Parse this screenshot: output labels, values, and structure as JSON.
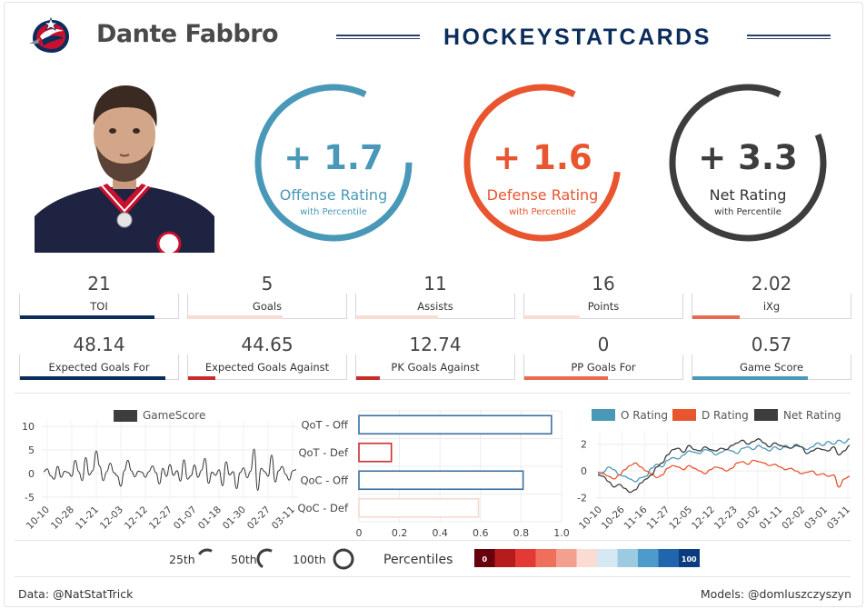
{
  "header": {
    "player_name": "Dante Fabbro",
    "brand": "HOCKEYSTATCARDS",
    "team_logo": "blue-jackets-logo-icon",
    "headshot": "player-headshot-icon"
  },
  "colors": {
    "offense": "#4a98b8",
    "defense": "#e8552f",
    "net": "#3d3d3d",
    "navy": "#0b2d5c",
    "red": "#c62c2c"
  },
  "ratings": [
    {
      "value": "+ 1.7",
      "label": "Offense Rating",
      "sub": "with Percentile",
      "percentile": 0.82,
      "color": "#4a98b8"
    },
    {
      "value": "+ 1.6",
      "label": "Defense Rating",
      "sub": "with Percentile",
      "percentile": 0.8,
      "color": "#e8552f"
    },
    {
      "value": "+ 3.3",
      "label": "Net Rating",
      "sub": "with Percentile",
      "percentile": 0.88,
      "color": "#3d3d3d"
    }
  ],
  "stats_row1": [
    {
      "value": "21",
      "label": "TOI",
      "percentile": 0.85,
      "color": "#0b2d5c"
    },
    {
      "value": "5",
      "label": "Goals",
      "percentile": 0.6,
      "color": "#fbdcd5"
    },
    {
      "value": "11",
      "label": "Assists",
      "percentile": 0.52,
      "color": "#fbdcd5"
    },
    {
      "value": "16",
      "label": "Points",
      "percentile": 0.35,
      "color": "#fbdcd5"
    },
    {
      "value": "2.02",
      "label": "iXg",
      "percentile": 0.3,
      "color": "#ea6a50"
    }
  ],
  "stats_row2": [
    {
      "value": "48.14",
      "label": "Expected Goals For",
      "percentile": 0.92,
      "color": "#0b2d5c"
    },
    {
      "value": "44.65",
      "label": "Expected Goals Against",
      "percentile": 0.17,
      "color": "#c62c2c"
    },
    {
      "value": "12.74",
      "label": "PK Goals Against",
      "percentile": 0.15,
      "color": "#c62c2c"
    },
    {
      "value": "0",
      "label": "PP Goals For",
      "percentile": 0.53,
      "color": "#ea6a50"
    },
    {
      "value": "0.57",
      "label": "Game Score",
      "percentile": 0.73,
      "color": "#4a98b8"
    }
  ],
  "chart_data": [
    {
      "type": "line",
      "legend": [
        "GameScore"
      ],
      "ylim": [
        -6,
        11
      ],
      "yticks": [
        "10",
        "5",
        "0",
        "-5"
      ],
      "ytick_values": [
        10,
        5,
        0,
        -5
      ],
      "xticks": [
        "10-10",
        "10-28",
        "11-21",
        "12-03",
        "12-12",
        "12-27",
        "01-07",
        "01-18",
        "01-30",
        "02-27",
        "03-11"
      ],
      "series": [
        {
          "name": "GameScore",
          "values": [
            0.4,
            1,
            -0.5,
            -1.2,
            1.5,
            -0.8,
            0.5,
            0.2,
            -0.6,
            2.8,
            0.4,
            -1.5,
            3.4,
            -0.3,
            0.6,
            4.8,
            1.5,
            -1.5,
            0.4,
            2.2,
            0.2,
            -0.5,
            -2.7,
            0.6,
            2.8,
            0.6,
            -0.7,
            0.5,
            0.3,
            -0.8,
            0.4,
            1.6,
            0.2,
            -2.2,
            1.1,
            -0.6,
            1.9,
            -0.4,
            0.6,
            -1.6,
            2.9,
            -1.2,
            -0.5,
            1.8,
            -0.8,
            0.7,
            3.2,
            -2.1,
            0.3,
            -0.4,
            0.8,
            -2.6,
            2.5,
            -0.3,
            0.4,
            -3.2,
            0.2,
            1.2,
            -0.9,
            0.5,
            5.2,
            -3.6,
            1.1,
            0.4,
            -0.6,
            3.9,
            -1.8,
            0.6,
            1.5,
            -0.2,
            -1.4,
            0.6,
            0.8
          ]
        }
      ]
    },
    {
      "type": "bar",
      "orientation": "horizontal",
      "categories": [
        "QoT - Off",
        "QoT - Def",
        "QoC - Off",
        "QoC - Def"
      ],
      "values": [
        0.95,
        0.16,
        0.81,
        0.59
      ],
      "colors": [
        "#3b6fa1",
        "#c9302c",
        "#3b6fa1",
        "#f7d9d0"
      ],
      "xlim": [
        0,
        1
      ],
      "xticks": [
        "0",
        "0.2",
        "0.4",
        "0.6",
        "0.8",
        "1.0"
      ],
      "xtick_values": [
        0,
        0.2,
        0.4,
        0.6,
        0.8,
        1.0
      ]
    },
    {
      "type": "line",
      "legend": [
        "O Rating",
        "D Rating",
        "Net Rating"
      ],
      "colors": [
        "#4a98b8",
        "#e8552f",
        "#3d3d3d"
      ],
      "ylim": [
        -2.3,
        3
      ],
      "yticks": [
        "2",
        "0",
        "-2"
      ],
      "ytick_values": [
        2,
        0,
        -2
      ],
      "xticks": [
        "10-10",
        "10-26",
        "11-16",
        "11-27",
        "12-05",
        "12-12",
        "12-23",
        "01-02",
        "01-11",
        "02-02",
        "03-01",
        "03-11"
      ],
      "series": [
        {
          "name": "O Rating",
          "values": [
            -0.2,
            -0.1,
            0.3,
            0.1,
            -0.3,
            -0.4,
            -0.6,
            -0.8,
            -0.5,
            -0.4,
            0.2,
            0.5,
            0.3,
            0.8,
            1.0,
            0.9,
            1.2,
            1.5,
            1.4,
            1.3,
            1.6,
            1.5,
            1.2,
            1.4,
            1.6,
            1.5,
            1.3,
            1.7,
            1.8,
            1.6,
            1.9,
            1.7,
            1.5,
            1.8,
            1.6,
            1.9,
            1.7,
            2.0,
            1.8,
            1.6,
            1.8,
            2.1,
            1.9,
            2.2,
            2.0,
            2.3,
            2.1,
            2.4
          ]
        },
        {
          "name": "D Rating",
          "values": [
            -0.1,
            -0.2,
            -0.4,
            -0.6,
            -0.3,
            0.1,
            0.4,
            0.6,
            0.3,
            0.0,
            -0.2,
            -0.5,
            -0.3,
            0.2,
            0.4,
            0.3,
            0.1,
            0.4,
            0.2,
            0.0,
            -0.2,
            0.1,
            0.3,
            0.2,
            0.0,
            0.2,
            0.6,
            0.7,
            0.5,
            0.8,
            0.7,
            0.6,
            0.4,
            0.5,
            0.3,
            0.1,
            0.2,
            0.0,
            -0.2,
            -0.1,
            0.0,
            -0.3,
            -0.2,
            -0.4,
            -0.3,
            -1.2,
            -0.6,
            -0.4
          ]
        },
        {
          "name": "Net Rating",
          "values": [
            -0.3,
            -0.4,
            -0.8,
            -1.2,
            -1.0,
            -1.3,
            -1.6,
            -1.4,
            -0.9,
            -0.6,
            -0.3,
            0.3,
            0.6,
            1.2,
            1.6,
            1.7,
            1.4,
            1.9,
            1.6,
            1.5,
            1.8,
            1.6,
            1.5,
            1.7,
            1.6,
            1.9,
            2.1,
            2.3,
            2.0,
            2.2,
            2.4,
            2.1,
            1.8,
            2.1,
            1.9,
            1.8,
            1.7,
            1.9,
            1.8,
            1.3,
            1.5,
            1.7,
            1.6,
            1.5,
            1.8,
            1.2,
            1.5,
            1.9
          ]
        }
      ]
    }
  ],
  "percentile_legend": {
    "items": [
      "25th",
      "50th",
      "100th"
    ],
    "fractions": [
      0.25,
      0.5,
      1.0
    ],
    "title": "Percentiles",
    "scale_min": "0",
    "scale_max": "100",
    "scale_colors": [
      "#67000d",
      "#b71c1c",
      "#e53935",
      "#ef6f5a",
      "#f4a090",
      "#fbdcd5",
      "#d6e9f3",
      "#9ccae1",
      "#4d9bcb",
      "#2166ac",
      "#0b3c7e"
    ]
  },
  "footer": {
    "data_credit": "Data: @NatStatTrick",
    "models_credit": "Models: @domluszczyszyn"
  }
}
